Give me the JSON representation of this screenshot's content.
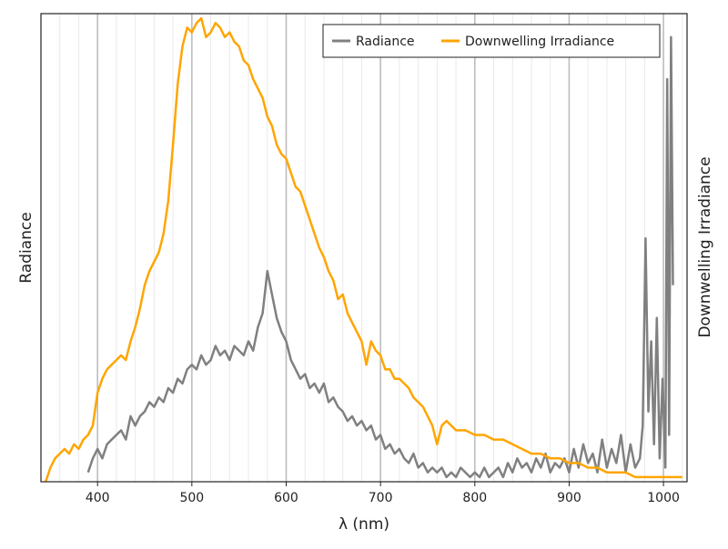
{
  "chart_data": {
    "type": "line",
    "title": "",
    "xlabel": "λ (nm)",
    "ylabel": "Radiance",
    "y2label": "Downwelling Irradiance",
    "xlim": [
      340,
      1025
    ],
    "ylim": [
      0,
      1
    ],
    "y2lim": [
      0,
      1
    ],
    "x_ticks": [
      400,
      500,
      600,
      700,
      800,
      900,
      1000
    ],
    "x_tick_labels": [
      "400",
      "500",
      "600",
      "700",
      "800",
      "900",
      "1000"
    ],
    "grid": {
      "major": true,
      "minor": true,
      "axis": "x"
    },
    "legend": {
      "position": "top-right",
      "entries": [
        "Radiance",
        "Downwelling Irradiance"
      ]
    },
    "series": [
      {
        "name": "Radiance",
        "color": "#808080",
        "axis": "left",
        "x": [
          390,
          395,
          400,
          405,
          410,
          415,
          420,
          425,
          430,
          435,
          440,
          445,
          450,
          455,
          460,
          465,
          470,
          475,
          480,
          485,
          490,
          495,
          500,
          505,
          510,
          515,
          520,
          525,
          530,
          535,
          540,
          545,
          550,
          555,
          560,
          565,
          570,
          575,
          580,
          585,
          590,
          595,
          600,
          605,
          610,
          615,
          620,
          625,
          630,
          635,
          640,
          645,
          650,
          655,
          660,
          665,
          670,
          675,
          680,
          685,
          690,
          695,
          700,
          705,
          710,
          715,
          720,
          725,
          730,
          735,
          740,
          745,
          750,
          755,
          760,
          765,
          770,
          775,
          780,
          785,
          790,
          795,
          800,
          805,
          810,
          815,
          820,
          825,
          830,
          835,
          840,
          845,
          850,
          855,
          860,
          865,
          870,
          875,
          880,
          885,
          890,
          895,
          900,
          905,
          910,
          915,
          920,
          925,
          930,
          935,
          940,
          945,
          950,
          955,
          960,
          965,
          970,
          975,
          978,
          981,
          984,
          987,
          990,
          993,
          996,
          999,
          1002,
          1004,
          1006,
          1008,
          1010
        ],
        "values": [
          0.02,
          0.05,
          0.07,
          0.05,
          0.08,
          0.09,
          0.1,
          0.11,
          0.09,
          0.14,
          0.12,
          0.14,
          0.15,
          0.17,
          0.16,
          0.18,
          0.17,
          0.2,
          0.19,
          0.22,
          0.21,
          0.24,
          0.25,
          0.24,
          0.27,
          0.25,
          0.26,
          0.29,
          0.27,
          0.28,
          0.26,
          0.29,
          0.28,
          0.27,
          0.3,
          0.28,
          0.33,
          0.36,
          0.45,
          0.4,
          0.35,
          0.32,
          0.3,
          0.26,
          0.24,
          0.22,
          0.23,
          0.2,
          0.21,
          0.19,
          0.21,
          0.17,
          0.18,
          0.16,
          0.15,
          0.13,
          0.14,
          0.12,
          0.13,
          0.11,
          0.12,
          0.09,
          0.1,
          0.07,
          0.08,
          0.06,
          0.07,
          0.05,
          0.04,
          0.06,
          0.03,
          0.04,
          0.02,
          0.03,
          0.02,
          0.03,
          0.01,
          0.02,
          0.01,
          0.03,
          0.02,
          0.01,
          0.02,
          0.01,
          0.03,
          0.01,
          0.02,
          0.03,
          0.01,
          0.04,
          0.02,
          0.05,
          0.03,
          0.04,
          0.02,
          0.05,
          0.03,
          0.06,
          0.02,
          0.04,
          0.03,
          0.05,
          0.02,
          0.07,
          0.03,
          0.08,
          0.04,
          0.06,
          0.02,
          0.09,
          0.03,
          0.07,
          0.04,
          0.1,
          0.02,
          0.08,
          0.03,
          0.05,
          0.12,
          0.52,
          0.15,
          0.3,
          0.08,
          0.35,
          0.05,
          0.22,
          0.03,
          0.86,
          0.1,
          0.95,
          0.42
        ]
      },
      {
        "name": "Downwelling Irradiance",
        "color": "#FFA500",
        "axis": "right",
        "x": [
          345,
          350,
          355,
          360,
          365,
          370,
          375,
          380,
          385,
          390,
          395,
          400,
          405,
          410,
          415,
          420,
          425,
          430,
          435,
          440,
          445,
          450,
          455,
          460,
          465,
          470,
          475,
          480,
          485,
          490,
          495,
          500,
          505,
          510,
          515,
          520,
          525,
          530,
          535,
          540,
          545,
          550,
          555,
          560,
          565,
          570,
          575,
          580,
          585,
          590,
          595,
          600,
          605,
          610,
          615,
          620,
          625,
          630,
          635,
          640,
          645,
          650,
          655,
          660,
          665,
          670,
          675,
          680,
          685,
          690,
          695,
          700,
          705,
          710,
          715,
          720,
          725,
          730,
          735,
          740,
          745,
          750,
          755,
          760,
          765,
          770,
          775,
          780,
          790,
          800,
          810,
          820,
          830,
          840,
          850,
          860,
          870,
          880,
          890,
          900,
          910,
          920,
          930,
          940,
          950,
          960,
          970,
          980,
          990,
          1000,
          1010,
          1020
        ],
        "values": [
          0.0,
          0.03,
          0.05,
          0.06,
          0.07,
          0.06,
          0.08,
          0.07,
          0.09,
          0.1,
          0.12,
          0.19,
          0.22,
          0.24,
          0.25,
          0.26,
          0.27,
          0.26,
          0.3,
          0.33,
          0.37,
          0.42,
          0.45,
          0.47,
          0.49,
          0.53,
          0.6,
          0.72,
          0.85,
          0.93,
          0.97,
          0.96,
          0.98,
          0.99,
          0.95,
          0.96,
          0.98,
          0.97,
          0.95,
          0.96,
          0.94,
          0.93,
          0.9,
          0.89,
          0.86,
          0.84,
          0.82,
          0.78,
          0.76,
          0.72,
          0.7,
          0.69,
          0.66,
          0.63,
          0.62,
          0.59,
          0.56,
          0.53,
          0.5,
          0.48,
          0.45,
          0.43,
          0.39,
          0.4,
          0.36,
          0.34,
          0.32,
          0.3,
          0.25,
          0.3,
          0.28,
          0.27,
          0.24,
          0.24,
          0.22,
          0.22,
          0.21,
          0.2,
          0.18,
          0.17,
          0.16,
          0.14,
          0.12,
          0.08,
          0.12,
          0.13,
          0.12,
          0.11,
          0.11,
          0.1,
          0.1,
          0.09,
          0.09,
          0.08,
          0.07,
          0.06,
          0.06,
          0.05,
          0.05,
          0.04,
          0.04,
          0.03,
          0.03,
          0.02,
          0.02,
          0.02,
          0.01,
          0.01,
          0.01,
          0.01,
          0.01,
          0.01
        ]
      }
    ]
  }
}
